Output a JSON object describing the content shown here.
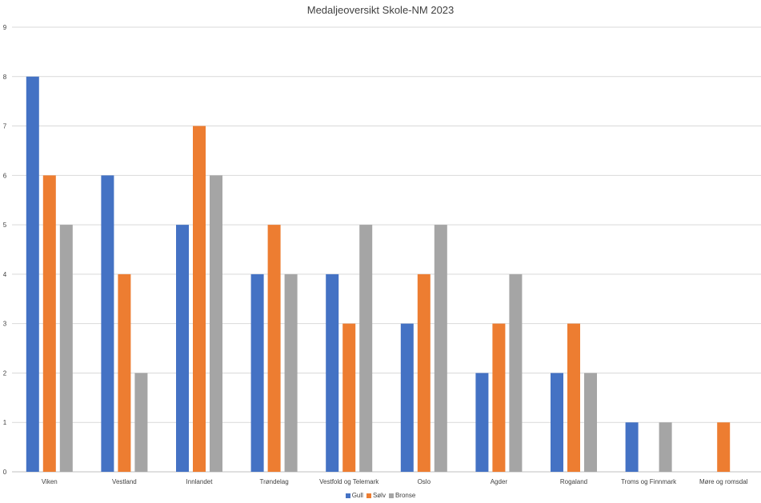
{
  "chart_data": {
    "type": "bar",
    "title": "Medaljeoversikt Skole-NM 2023",
    "xlabel": "",
    "ylabel": "",
    "ylim": [
      0,
      9
    ],
    "yticks": [
      "0",
      "1",
      "2",
      "3",
      "4",
      "5",
      "6",
      "7",
      "8",
      "9"
    ],
    "grid": true,
    "legend_position": "bottom",
    "categories": [
      "Viken",
      "Vestland",
      "Innlandet",
      "Trøndelag",
      "Vestfold og Telemark",
      "Oslo",
      "Agder",
      "Rogaland",
      "Troms og Finnmark",
      "Møre og romsdal"
    ],
    "series": [
      {
        "name": "Gull",
        "color": "#4472c4",
        "values": [
          8,
          6,
          5,
          4,
          4,
          3,
          2,
          2,
          1,
          0
        ]
      },
      {
        "name": "Sølv",
        "color": "#ed7d31",
        "values": [
          6,
          4,
          7,
          5,
          3,
          4,
          3,
          3,
          0,
          1
        ]
      },
      {
        "name": "Bronse",
        "color": "#a5a5a5",
        "values": [
          5,
          2,
          6,
          4,
          5,
          5,
          4,
          2,
          1,
          0
        ]
      }
    ]
  }
}
